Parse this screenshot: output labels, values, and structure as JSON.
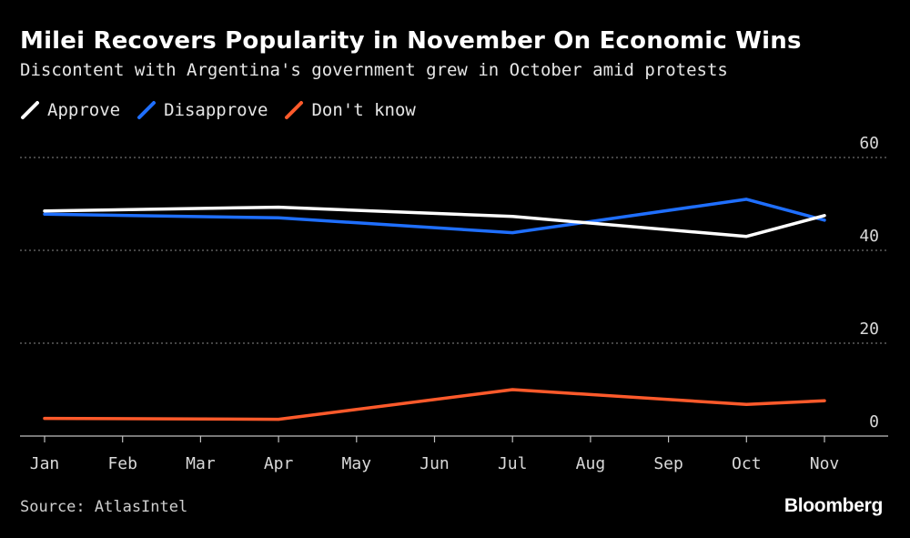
{
  "header": {
    "title": "Milei Recovers Popularity in November On Economic Wins",
    "subtitle": "Discontent with Argentina's government grew in October amid protests"
  },
  "footer": {
    "source": "Source: AtlasIntel",
    "brand": "Bloomberg"
  },
  "chart_data": {
    "type": "line",
    "title": "Milei Recovers Popularity in November On Economic Wins",
    "subtitle": "Discontent with Argentina's government grew in October amid protests",
    "x": [
      "Jan",
      "Feb",
      "Mar",
      "Apr",
      "May",
      "Jun",
      "Jul",
      "Aug",
      "Sep",
      "Oct",
      "Nov"
    ],
    "x_tick_labels": [
      "Jan",
      "Feb",
      "Mar",
      "Apr",
      "May",
      "Jun",
      "Jul",
      "Aug",
      "Sep",
      "Oct",
      "Nov"
    ],
    "y_ticks": [
      0,
      20,
      40,
      60
    ],
    "ylim": [
      0,
      60
    ],
    "y_axis_side": "right",
    "grid": true,
    "legend_position": "top-left",
    "series": [
      {
        "name": "Approve",
        "color": "#ffffff",
        "x": [
          "Jan",
          "Apr",
          "Jul",
          "Oct",
          "Nov"
        ],
        "values": [
          48.5,
          49.3,
          47.3,
          43.0,
          47.5
        ]
      },
      {
        "name": "Disapprove",
        "color": "#1f6fff",
        "x": [
          "Jan",
          "Apr",
          "Jul",
          "Oct",
          "Nov"
        ],
        "values": [
          47.8,
          47.0,
          43.8,
          51.0,
          46.5
        ]
      },
      {
        "name": "Don't know",
        "color": "#ff5a2b",
        "x": [
          "Jan",
          "Apr",
          "Jul",
          "Oct",
          "Nov"
        ],
        "values": [
          3.8,
          3.6,
          10.0,
          6.8,
          7.6
        ]
      }
    ]
  }
}
